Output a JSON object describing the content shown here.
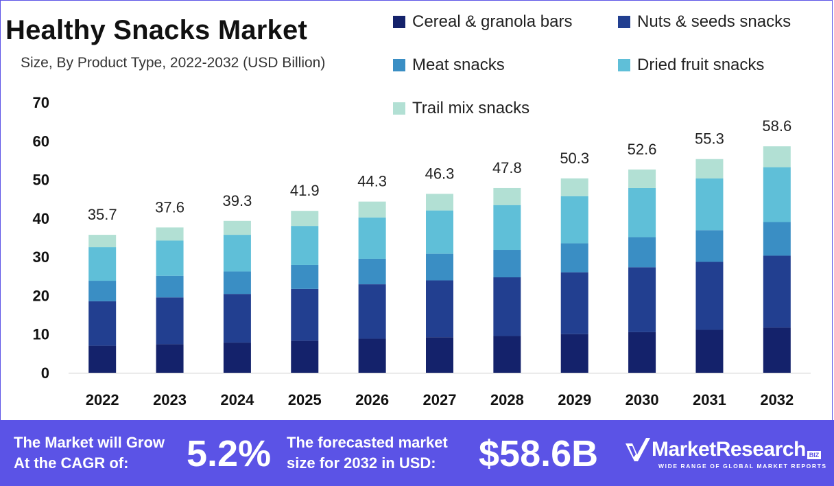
{
  "chart_data": {
    "type": "bar",
    "stacked": true,
    "title": "Healthy Snacks Market",
    "subtitle": "Size, By Product Type, 2022-2032 (USD Billion)",
    "categories": [
      "2022",
      "2023",
      "2024",
      "2025",
      "2026",
      "2027",
      "2028",
      "2029",
      "2030",
      "2031",
      "2032"
    ],
    "totals": [
      "35.7",
      "37.6",
      "39.3",
      "41.9",
      "44.3",
      "46.3",
      "47.8",
      "50.3",
      "52.6",
      "55.3",
      "58.6"
    ],
    "ylim": [
      0,
      70
    ],
    "yticks": [
      0,
      10,
      20,
      30,
      40,
      50,
      60,
      70
    ],
    "grid": false,
    "legend_position": "top-right",
    "series": [
      {
        "name": "Cereal & granola bars",
        "color": "#14226b",
        "values": [
          7.0,
          7.4,
          7.8,
          8.3,
          8.8,
          9.2,
          9.5,
          10.0,
          10.5,
          11.1,
          11.7
        ]
      },
      {
        "name": "Nuts & seeds snacks",
        "color": "#223f90",
        "values": [
          11.5,
          12.1,
          12.6,
          13.4,
          14.1,
          14.7,
          15.2,
          16.0,
          16.8,
          17.6,
          18.6
        ]
      },
      {
        "name": "Meat snacks",
        "color": "#3a8ec4",
        "values": [
          5.3,
          5.6,
          5.8,
          6.2,
          6.6,
          6.9,
          7.1,
          7.5,
          7.8,
          8.2,
          8.7
        ]
      },
      {
        "name": "Dried fruit snacks",
        "color": "#5fbfd8",
        "values": [
          8.7,
          9.1,
          9.5,
          10.1,
          10.7,
          11.2,
          11.6,
          12.2,
          12.7,
          13.4,
          14.2
        ]
      },
      {
        "name": "Trail mix snacks",
        "color": "#b2e0d4",
        "values": [
          3.2,
          3.4,
          3.6,
          3.9,
          4.1,
          4.3,
          4.4,
          4.6,
          4.8,
          5.0,
          5.4
        ]
      }
    ]
  },
  "footer": {
    "cagr_text_line1": "The Market will Grow",
    "cagr_text_line2": "At the CAGR of:",
    "cagr_value": "5.2%",
    "forecast_text_line1": "The forecasted market",
    "forecast_text_line2": "size for 2032 in USD:",
    "forecast_value": "$58.6B",
    "brand_name": "MarketResearch",
    "brand_suffix": "BIZ",
    "brand_tagline": "WIDE RANGE OF GLOBAL MARKET REPORTS"
  },
  "colors": {
    "footer_bg": "#5b53e6",
    "axis": "#cccccc"
  }
}
